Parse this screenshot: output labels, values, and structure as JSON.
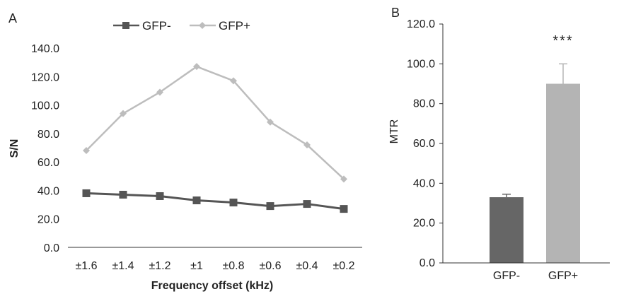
{
  "colors": {
    "gfp_minus": "#555555",
    "gfp_plus": "#bdbdbd",
    "bar_minus": "#666666",
    "bar_plus": "#b4b4b4",
    "axis": "#333333"
  },
  "chart_data": [
    {
      "panel": "A",
      "type": "line",
      "xlabel": "Frequency  offset (kHz)",
      "ylabel": "S/N",
      "categories": [
        "±1.6",
        "±1.4",
        "±1.2",
        "±1",
        "±0.8",
        "±0.6",
        "±0.4",
        "±0.2"
      ],
      "ylim": [
        0,
        140
      ],
      "yticks": [
        "0.0",
        "20.0",
        "40.0",
        "60.0",
        "80.0",
        "100.0",
        "120.0",
        "140.0"
      ],
      "grid": false,
      "legend_position": "top",
      "series": [
        {
          "name": "GFP-",
          "marker": "square",
          "values": [
            38,
            37,
            36,
            33,
            31.5,
            29,
            30.5,
            27
          ]
        },
        {
          "name": "GFP+",
          "marker": "diamond",
          "values": [
            68,
            94,
            109,
            127,
            117,
            88,
            72,
            48
          ]
        }
      ]
    },
    {
      "panel": "B",
      "type": "bar",
      "ylabel": "MTR",
      "categories": [
        "GFP-",
        "GFP+"
      ],
      "values": [
        33,
        90
      ],
      "error": [
        1.5,
        10
      ],
      "ylim": [
        0,
        120
      ],
      "yticks": [
        "0.0",
        "20.0",
        "40.0",
        "60.0",
        "80.0",
        "100.0",
        "120.0"
      ],
      "grid": false,
      "annotation": "***"
    }
  ]
}
